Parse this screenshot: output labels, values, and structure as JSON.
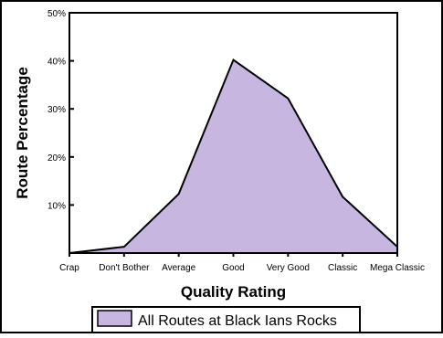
{
  "chart_data": {
    "type": "area",
    "title": "",
    "xlabel": "Quality Rating",
    "ylabel": "Route Percentage",
    "categories": [
      "Crap",
      "Don't Bother",
      "Average",
      "Good",
      "Very Good",
      "Classic",
      "Mega Classic"
    ],
    "y_ticks": [
      "10%",
      "20%",
      "30%",
      "40%",
      "50%"
    ],
    "ylim": [
      0,
      50
    ],
    "grid": false,
    "legend_position": "bottom",
    "series": [
      {
        "name": "All Routes at Black Ians Rocks",
        "values": [
          0,
          1.3,
          12.3,
          40.2,
          32.2,
          11.7,
          1.3
        ]
      }
    ],
    "colors": {
      "fill": "#C7B6E0",
      "line": "#000000",
      "frame": "#000000"
    }
  }
}
